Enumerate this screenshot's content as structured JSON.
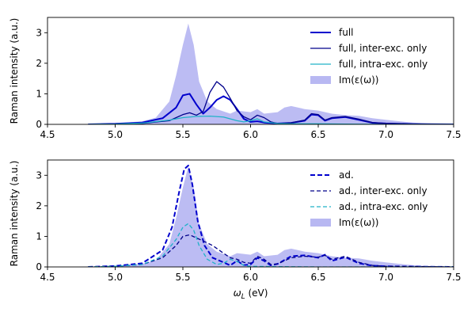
{
  "colors": {
    "dark": "#0000cd",
    "mid": "#00008b",
    "cyan": "#20b2c8",
    "fill": "#b8b8f2"
  },
  "chart_data": [
    {
      "type": "line",
      "panel": "top",
      "xlim": [
        4.5,
        7.5
      ],
      "ylim": [
        0,
        3.5
      ],
      "xticks": [
        "4.5",
        "5.0",
        "5.5",
        "6.0",
        "6.5",
        "7.0",
        "7.5"
      ],
      "yticks": [
        "0",
        "1",
        "2",
        "3"
      ],
      "ylabel": "Raman intensity (a.u.)",
      "xlabel": "",
      "legend": "top-right",
      "series": [
        {
          "name": "full",
          "style": "solid",
          "color": "#0000cd",
          "x": [
            4.8,
            5.0,
            5.2,
            5.35,
            5.45,
            5.5,
            5.55,
            5.6,
            5.65,
            5.7,
            5.75,
            5.8,
            5.85,
            5.9,
            5.95,
            6.0,
            6.05,
            6.1,
            6.2,
            6.3,
            6.4,
            6.45,
            6.5,
            6.55,
            6.6,
            6.7,
            6.8,
            6.9,
            7.0,
            7.2,
            7.5
          ],
          "y": [
            0.0,
            0.02,
            0.06,
            0.2,
            0.55,
            0.95,
            1.0,
            0.65,
            0.35,
            0.55,
            0.8,
            0.92,
            0.8,
            0.5,
            0.18,
            0.08,
            0.1,
            0.06,
            0.03,
            0.05,
            0.12,
            0.32,
            0.3,
            0.12,
            0.2,
            0.24,
            0.15,
            0.05,
            0.03,
            0.01,
            0.0
          ]
        },
        {
          "name": "full, inter-exc. only",
          "style": "solid",
          "color": "#00008b",
          "x": [
            4.8,
            5.0,
            5.2,
            5.4,
            5.5,
            5.55,
            5.6,
            5.65,
            5.7,
            5.75,
            5.8,
            5.85,
            5.9,
            5.95,
            6.0,
            6.05,
            6.1,
            6.15,
            6.2,
            6.3,
            6.4,
            6.45,
            6.5,
            6.55,
            6.6,
            6.7,
            6.8,
            6.9,
            7.0,
            7.2,
            7.5
          ],
          "y": [
            0.0,
            0.01,
            0.03,
            0.12,
            0.32,
            0.38,
            0.3,
            0.42,
            1.05,
            1.4,
            1.22,
            0.85,
            0.45,
            0.25,
            0.15,
            0.3,
            0.22,
            0.08,
            0.03,
            0.05,
            0.14,
            0.35,
            0.32,
            0.14,
            0.22,
            0.26,
            0.17,
            0.06,
            0.03,
            0.01,
            0.0
          ]
        },
        {
          "name": "full, intra-exc. only",
          "style": "solid",
          "color": "#20b2c8",
          "x": [
            4.8,
            5.0,
            5.2,
            5.4,
            5.5,
            5.6,
            5.7,
            5.8,
            5.9,
            5.95,
            6.0,
            6.05,
            6.1,
            6.2,
            6.3,
            6.5,
            6.7,
            7.0,
            7.5
          ],
          "y": [
            0.0,
            0.01,
            0.04,
            0.14,
            0.22,
            0.26,
            0.27,
            0.24,
            0.12,
            0.08,
            0.12,
            0.18,
            0.08,
            0.03,
            0.02,
            0.02,
            0.01,
            0.0,
            0.0
          ]
        },
        {
          "name": "Im(ε(ω))",
          "style": "filled",
          "color": "#b8b8f2",
          "x": [
            4.7,
            5.0,
            5.2,
            5.3,
            5.4,
            5.45,
            5.5,
            5.54,
            5.58,
            5.62,
            5.68,
            5.75,
            5.85,
            5.9,
            6.0,
            6.05,
            6.1,
            6.2,
            6.25,
            6.3,
            6.4,
            6.5,
            6.6,
            6.7,
            6.8,
            6.9,
            7.0,
            7.1,
            7.2,
            7.3,
            7.5
          ],
          "y": [
            0.0,
            0.03,
            0.1,
            0.22,
            0.75,
            1.6,
            2.6,
            3.3,
            2.6,
            1.4,
            0.75,
            0.5,
            0.35,
            0.45,
            0.4,
            0.5,
            0.35,
            0.4,
            0.55,
            0.6,
            0.5,
            0.45,
            0.35,
            0.3,
            0.28,
            0.2,
            0.15,
            0.1,
            0.06,
            0.03,
            0.01
          ]
        }
      ]
    },
    {
      "type": "line",
      "panel": "bottom",
      "xlim": [
        4.5,
        7.5
      ],
      "ylim": [
        0,
        3.5
      ],
      "xticks": [
        "4.5",
        "5.0",
        "5.5",
        "6.0",
        "6.5",
        "7.0",
        "7.5"
      ],
      "yticks": [
        "0",
        "1",
        "2",
        "3"
      ],
      "ylabel": "Raman intensity (a.u.)",
      "xlabel": "ω_L (eV)",
      "legend": "top-right",
      "series": [
        {
          "name": "ad.",
          "style": "dashed-thick",
          "color": "#0000cd",
          "x": [
            4.8,
            5.0,
            5.2,
            5.35,
            5.42,
            5.47,
            5.51,
            5.54,
            5.57,
            5.61,
            5.66,
            5.72,
            5.8,
            5.85,
            5.9,
            5.95,
            6.0,
            6.05,
            6.1,
            6.15,
            6.2,
            6.3,
            6.4,
            6.5,
            6.55,
            6.6,
            6.7,
            6.8,
            6.9,
            7.0,
            7.2,
            7.5
          ],
          "y": [
            0.0,
            0.03,
            0.12,
            0.55,
            1.3,
            2.4,
            3.2,
            3.32,
            2.7,
            1.5,
            0.7,
            0.3,
            0.15,
            0.05,
            0.2,
            0.06,
            0.08,
            0.3,
            0.2,
            0.05,
            0.1,
            0.35,
            0.38,
            0.3,
            0.4,
            0.2,
            0.32,
            0.12,
            0.04,
            0.02,
            0.01,
            0.0
          ]
        },
        {
          "name": "ad., inter-exc. only",
          "style": "dashed",
          "color": "#00008b",
          "x": [
            4.8,
            5.0,
            5.2,
            5.35,
            5.45,
            5.5,
            5.55,
            5.6,
            5.65,
            5.72,
            5.8,
            5.85,
            5.9,
            5.95,
            6.0,
            6.05,
            6.1,
            6.15,
            6.2,
            6.3,
            6.4,
            6.5,
            6.55,
            6.6,
            6.7,
            6.8,
            6.9,
            7.0,
            7.5
          ],
          "y": [
            0.0,
            0.02,
            0.08,
            0.3,
            0.7,
            1.0,
            1.05,
            0.95,
            0.85,
            0.7,
            0.45,
            0.3,
            0.25,
            0.15,
            0.12,
            0.35,
            0.25,
            0.08,
            0.1,
            0.3,
            0.35,
            0.32,
            0.38,
            0.25,
            0.35,
            0.15,
            0.05,
            0.02,
            0.0
          ]
        },
        {
          "name": "ad., intra-exc. only",
          "style": "dashed",
          "color": "#20b2c8",
          "x": [
            4.8,
            5.0,
            5.2,
            5.35,
            5.45,
            5.5,
            5.54,
            5.58,
            5.62,
            5.68,
            5.75,
            5.8,
            5.85,
            5.9,
            5.95,
            6.0,
            6.2,
            6.5,
            7.0,
            7.5
          ],
          "y": [
            0.0,
            0.02,
            0.08,
            0.35,
            0.9,
            1.3,
            1.42,
            1.2,
            0.7,
            0.25,
            0.08,
            0.12,
            0.25,
            0.18,
            0.05,
            0.02,
            0.01,
            0.0,
            0.0,
            0.0
          ]
        },
        {
          "name": "Im(ε(ω))",
          "style": "filled",
          "color": "#b8b8f2",
          "x": [
            4.7,
            5.0,
            5.2,
            5.3,
            5.4,
            5.45,
            5.5,
            5.54,
            5.58,
            5.62,
            5.68,
            5.75,
            5.85,
            5.9,
            6.0,
            6.05,
            6.1,
            6.2,
            6.25,
            6.3,
            6.4,
            6.5,
            6.6,
            6.7,
            6.8,
            6.9,
            7.0,
            7.1,
            7.2,
            7.3,
            7.5
          ],
          "y": [
            0.0,
            0.03,
            0.1,
            0.22,
            0.75,
            1.6,
            2.6,
            3.3,
            2.6,
            1.4,
            0.75,
            0.5,
            0.35,
            0.45,
            0.4,
            0.5,
            0.35,
            0.4,
            0.55,
            0.6,
            0.5,
            0.45,
            0.35,
            0.3,
            0.28,
            0.2,
            0.15,
            0.1,
            0.06,
            0.03,
            0.01
          ]
        }
      ]
    }
  ]
}
